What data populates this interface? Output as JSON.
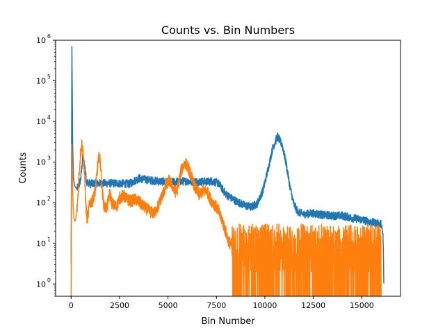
{
  "chart_data": {
    "type": "line",
    "title": "Counts vs. Bin Numbers",
    "xlabel": "Bin Number",
    "ylabel": "Counts",
    "xlim": [
      -800,
      17000
    ],
    "ylim": [
      0.5,
      1000000
    ],
    "yscale": "log",
    "grid": false,
    "x_ticks": [
      0,
      2500,
      5000,
      7500,
      10000,
      12500,
      15000
    ],
    "x_tick_labels": [
      "0",
      "2500",
      "5000",
      "7500",
      "10000",
      "12500",
      "15000"
    ],
    "y_ticks": [
      1,
      10,
      100,
      1000,
      10000,
      100000,
      1000000
    ],
    "y_tick_labels": [
      {
        "base": "10",
        "exp": "0"
      },
      {
        "base": "10",
        "exp": "1"
      },
      {
        "base": "10",
        "exp": "2"
      },
      {
        "base": "10",
        "exp": "3"
      },
      {
        "base": "10",
        "exp": "4"
      },
      {
        "base": "10",
        "exp": "5"
      },
      {
        "base": "10",
        "exp": "6"
      }
    ],
    "series": [
      {
        "color": "#1f77b4",
        "x": [
          0,
          40,
          80,
          120,
          200,
          300,
          400,
          500,
          600,
          700,
          800,
          1000,
          1200,
          1500,
          2000,
          2500,
          3000,
          3500,
          4000,
          4500,
          5000,
          5500,
          6000,
          6500,
          7000,
          7300,
          7600,
          8000,
          8500,
          9000,
          9300,
          9600,
          9900,
          10200,
          10400,
          10650,
          10900,
          11100,
          11300,
          11500,
          11700,
          12000,
          12500,
          13000,
          13500,
          14000,
          14500,
          15000,
          15500,
          16000,
          16100,
          16150
        ],
        "y": [
          3,
          700000,
          3000,
          400,
          250,
          220,
          260,
          400,
          1400,
          800,
          330,
          290,
          300,
          300,
          300,
          300,
          290,
          400,
          360,
          340,
          320,
          330,
          340,
          330,
          330,
          340,
          300,
          160,
          110,
          85,
          78,
          95,
          200,
          800,
          2200,
          4300,
          2600,
          900,
          240,
          90,
          60,
          52,
          55,
          50,
          48,
          48,
          42,
          38,
          33,
          30,
          15,
          0.6
        ],
        "noise": 0.1
      },
      {
        "color": "#ff7f0e",
        "x": [
          0,
          30,
          70,
          100,
          150,
          200,
          260,
          320,
          400,
          480,
          560,
          620,
          700,
          760,
          820,
          880,
          950,
          1100,
          1250,
          1380,
          1450,
          1520,
          1600,
          1700,
          1850,
          2000,
          2100,
          2200,
          2350,
          2500,
          2700,
          2900,
          3100,
          3300,
          3500,
          3700,
          3900,
          4100,
          4300,
          4500,
          4700,
          4900,
          5050,
          5200,
          5350,
          5500,
          5650,
          5800,
          5900,
          6000,
          6200,
          6400,
          6600,
          6800,
          7000,
          7200,
          7400,
          7600,
          7700,
          7800,
          7900,
          8000,
          8100,
          8200,
          8300
        ],
        "y": [
          0.5,
          3000,
          500,
          90,
          40,
          35,
          45,
          80,
          400,
          1500,
          3000,
          1600,
          380,
          85,
          40,
          50,
          100,
          110,
          200,
          900,
          1400,
          900,
          200,
          80,
          75,
          180,
          100,
          85,
          80,
          130,
          150,
          120,
          110,
          120,
          105,
          85,
          70,
          60,
          55,
          85,
          150,
          260,
          360,
          280,
          180,
          220,
          550,
          850,
          950,
          800,
          450,
          230,
          160,
          190,
          200,
          120,
          90,
          65,
          45,
          38,
          25,
          18,
          12,
          10,
          9
        ],
        "noise": 0.15,
        "tail": {
          "from": 8300,
          "to": 16000,
          "low": 0.5,
          "high": 30
        }
      }
    ]
  }
}
